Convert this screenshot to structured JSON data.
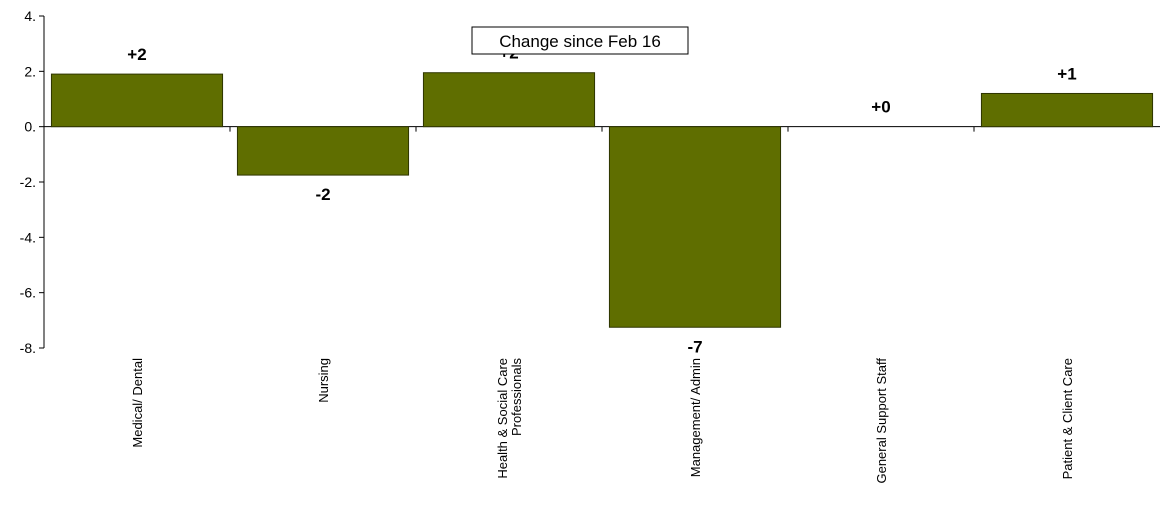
{
  "chart_data": {
    "type": "bar",
    "title": "Change since Feb 16",
    "categories": [
      [
        "Medical/ Dental"
      ],
      [
        "Nursing"
      ],
      [
        "Health & Social Care",
        "Professionals"
      ],
      [
        "Management/ Admin"
      ],
      [
        "General Support Staff"
      ],
      [
        "Patient & Client Care"
      ]
    ],
    "values": [
      1.9,
      -1.75,
      1.95,
      -7.25,
      0.0,
      1.2
    ],
    "data_labels": [
      "+2",
      "-2",
      "+2",
      "-7",
      "+0",
      "+1"
    ],
    "y_ticks": [
      "4.",
      "2.",
      "0.",
      "-2.",
      "-4.",
      "-6.",
      "-8."
    ],
    "ylim": [
      -8,
      4
    ],
    "grid": false,
    "legend": "none",
    "bar_color": "#5f6e00",
    "bar_edge": "#2e3500"
  }
}
